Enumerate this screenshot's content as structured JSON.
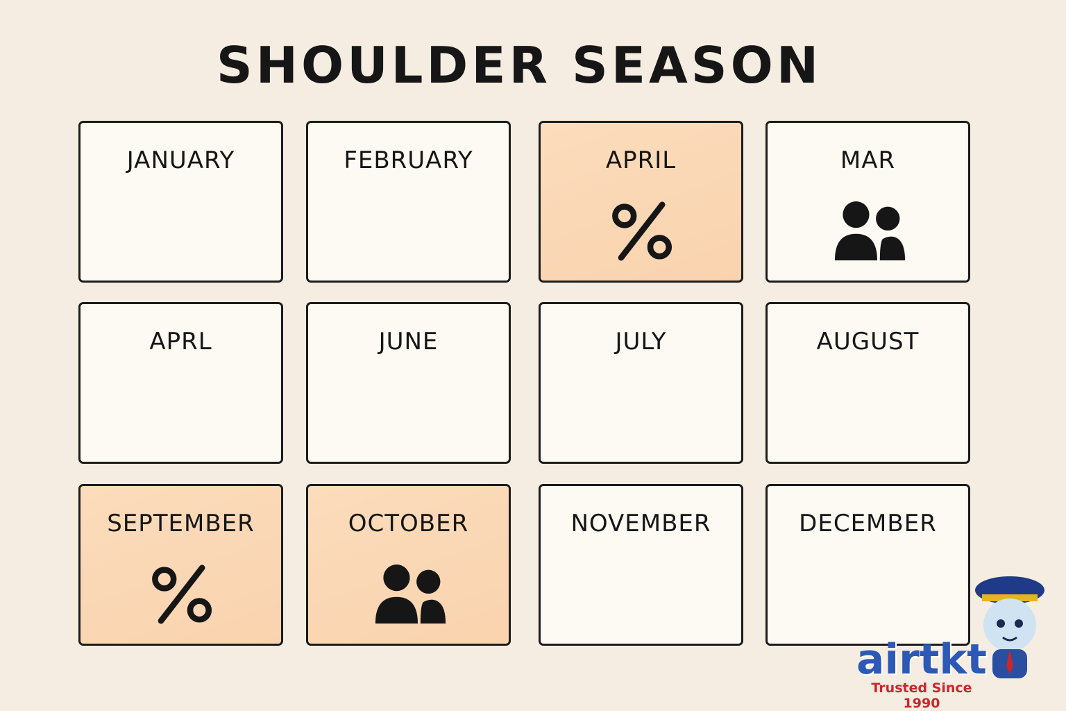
{
  "header": {
    "title": "SHOULDER SEASON"
  },
  "grid": {
    "cells": [
      {
        "label": "JANUARY",
        "highlight": false,
        "icon": null
      },
      {
        "label": "FEBRUARY",
        "highlight": false,
        "icon": null
      },
      {
        "label": "APRIL",
        "highlight": true,
        "icon": "percent"
      },
      {
        "label": "MAR",
        "highlight": false,
        "icon": "people"
      },
      {
        "label": "APRL",
        "highlight": false,
        "icon": null
      },
      {
        "label": "JUNE",
        "highlight": false,
        "icon": null
      },
      {
        "label": "JULY",
        "highlight": false,
        "icon": null
      },
      {
        "label": "AUGUST",
        "highlight": false,
        "icon": null
      },
      {
        "label": "SEPTEMBER",
        "highlight": true,
        "icon": "percent"
      },
      {
        "label": "OCTOBER",
        "highlight": true,
        "icon": "people"
      },
      {
        "label": "NOVEMBER",
        "highlight": false,
        "icon": null
      },
      {
        "label": "DECEMBER",
        "highlight": false,
        "icon": null
      }
    ]
  },
  "logo": {
    "brand": "airtkt",
    "tagline": "Trusted Since 1990"
  }
}
